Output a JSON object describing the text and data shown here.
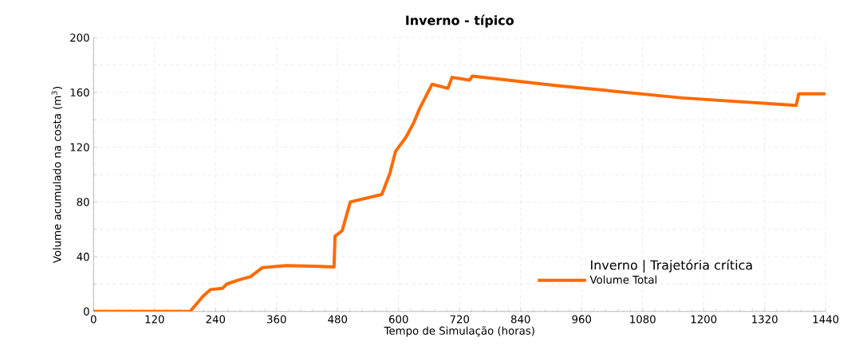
{
  "chart_data": {
    "type": "line",
    "title": "Inverno - típico",
    "xlabel": "Tempo de Simulação (horas)",
    "ylabel": "Volume acumulado na costa (m$^{3}$)",
    "legend_title": "Inverno | Trajetória crítica",
    "legend": "bottom right",
    "grid": true,
    "marker": "none",
    "line_style": "solid",
    "xlim": [
      0,
      1440
    ],
    "xticks": [
      0,
      120,
      240,
      360,
      480,
      600,
      720,
      840,
      960,
      1080,
      1200,
      1320,
      1440
    ],
    "ylim": [
      0,
      200
    ],
    "yticks": [
      0,
      40,
      80,
      120,
      160,
      200
    ],
    "series": [
      {
        "name": "Volume Total",
        "color": "#ff6a00",
        "x": [
          0,
          190,
          215,
          230,
          254,
          262,
          285,
          309,
          332,
          379,
          442,
          473,
          475,
          489,
          505,
          567,
          583,
          594,
          614,
          630,
          641,
          666,
          697,
          705,
          740,
          745,
          912,
          1158,
          1382,
          1387,
          1440
        ],
        "values": [
          0,
          0,
          11,
          16,
          17,
          20,
          23,
          25.5,
          32,
          33.5,
          33,
          32.5,
          55,
          59,
          80,
          85.5,
          101,
          117,
          127,
          138,
          148,
          166,
          163,
          171,
          169,
          172,
          165,
          156,
          150.5,
          159,
          159
        ]
      }
    ]
  }
}
